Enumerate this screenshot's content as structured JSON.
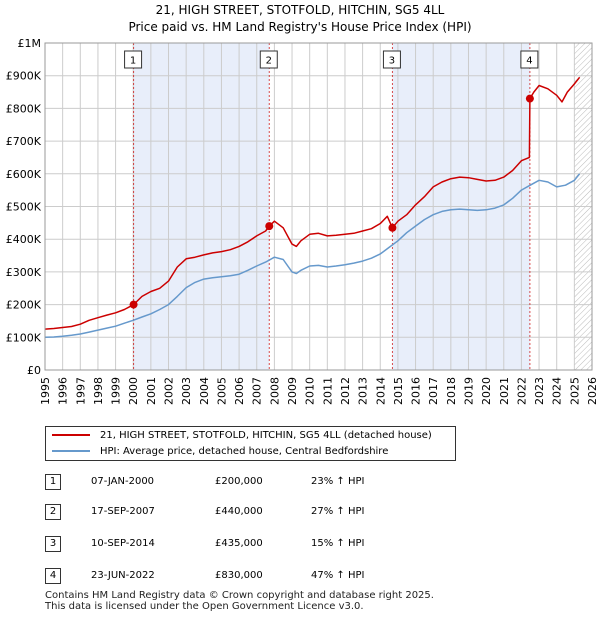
{
  "chart_data": {
    "type": "line",
    "title": "21, HIGH STREET, STOTFOLD, HITCHIN, SG5 4LL",
    "subtitle": "Price paid vs. HM Land Registry's House Price Index (HPI)",
    "xlabel": "",
    "ylabel": "",
    "xlim": [
      1995,
      2026
    ],
    "ylim": [
      0,
      1000000
    ],
    "y_ticks": [
      0,
      100000,
      200000,
      300000,
      400000,
      500000,
      600000,
      700000,
      800000,
      900000,
      1000000
    ],
    "y_tick_labels": [
      "£0",
      "£100K",
      "£200K",
      "£300K",
      "£400K",
      "£500K",
      "£600K",
      "£700K",
      "£800K",
      "£900K",
      "£1M"
    ],
    "x_ticks": [
      1995,
      1996,
      1997,
      1998,
      1999,
      2000,
      2001,
      2002,
      2003,
      2004,
      2005,
      2006,
      2007,
      2008,
      2009,
      2010,
      2011,
      2012,
      2013,
      2014,
      2015,
      2016,
      2017,
      2018,
      2019,
      2020,
      2021,
      2022,
      2023,
      2024,
      2025,
      2026
    ],
    "x_tick_labels": [
      "1995",
      "1996",
      "1997",
      "1998",
      "1999",
      "2000",
      "2001",
      "2002",
      "2003",
      "2004",
      "2005",
      "2006",
      "2007",
      "2008",
      "2009",
      "2010",
      "2011",
      "2012",
      "2013",
      "2014",
      "2015",
      "2016",
      "2017",
      "2018",
      "2019",
      "2020",
      "2021",
      "2022",
      "2023",
      "2024",
      "2025",
      "2026"
    ],
    "grid": true,
    "shaded_spans": [
      [
        2000.02,
        2007.71
      ],
      [
        2014.69,
        2022.48
      ]
    ],
    "future_hatch_start": 2025.0,
    "series": [
      {
        "name": "21, HIGH STREET, STOTFOLD, HITCHIN, SG5 4LL (detached house)",
        "color": "#cc0000",
        "x": [
          1995.0,
          1995.5,
          1996.0,
          1996.5,
          1997.0,
          1997.5,
          1998.0,
          1998.5,
          1999.0,
          1999.5,
          2000.02,
          2000.5,
          2001.0,
          2001.5,
          2002.0,
          2002.5,
          2003.0,
          2003.5,
          2004.0,
          2004.5,
          2005.0,
          2005.5,
          2006.0,
          2006.5,
          2007.0,
          2007.5,
          2007.71,
          2008.0,
          2008.5,
          2009.0,
          2009.25,
          2009.5,
          2010.0,
          2010.5,
          2011.0,
          2011.5,
          2012.0,
          2012.5,
          2013.0,
          2013.5,
          2014.0,
          2014.4,
          2014.69,
          2015.0,
          2015.5,
          2016.0,
          2016.5,
          2017.0,
          2017.5,
          2018.0,
          2018.5,
          2019.0,
          2019.5,
          2020.0,
          2020.5,
          2021.0,
          2021.5,
          2022.0,
          2022.45,
          2022.48,
          2022.7,
          2023.0,
          2023.5,
          2024.0,
          2024.3,
          2024.6,
          2025.0,
          2025.3
        ],
        "values": [
          125000,
          127000,
          130000,
          133000,
          140000,
          152000,
          160000,
          168000,
          175000,
          185000,
          200000,
          225000,
          240000,
          250000,
          272000,
          315000,
          340000,
          345000,
          352000,
          358000,
          362000,
          368000,
          378000,
          392000,
          410000,
          425000,
          440000,
          455000,
          435000,
          385000,
          378000,
          395000,
          415000,
          418000,
          410000,
          412000,
          415000,
          418000,
          425000,
          432000,
          448000,
          470000,
          435000,
          455000,
          475000,
          505000,
          530000,
          560000,
          575000,
          585000,
          590000,
          588000,
          583000,
          578000,
          580000,
          590000,
          610000,
          640000,
          650000,
          830000,
          850000,
          870000,
          860000,
          840000,
          820000,
          850000,
          875000,
          895000
        ]
      },
      {
        "name": "HPI: Average price, detached house, Central Bedfordshire",
        "color": "#6699cc",
        "x": [
          1995.0,
          1995.5,
          1996.0,
          1996.5,
          1997.0,
          1997.5,
          1998.0,
          1998.5,
          1999.0,
          1999.5,
          2000.0,
          2000.5,
          2001.0,
          2001.5,
          2002.0,
          2002.5,
          2003.0,
          2003.5,
          2004.0,
          2004.5,
          2005.0,
          2005.5,
          2006.0,
          2006.5,
          2007.0,
          2007.5,
          2008.0,
          2008.5,
          2009.0,
          2009.25,
          2009.5,
          2010.0,
          2010.5,
          2011.0,
          2011.5,
          2012.0,
          2012.5,
          2013.0,
          2013.5,
          2014.0,
          2014.5,
          2015.0,
          2015.5,
          2016.0,
          2016.5,
          2017.0,
          2017.5,
          2018.0,
          2018.5,
          2019.0,
          2019.5,
          2020.0,
          2020.5,
          2021.0,
          2021.5,
          2022.0,
          2022.5,
          2023.0,
          2023.5,
          2024.0,
          2024.5,
          2025.0,
          2025.3
        ],
        "values": [
          100000,
          101000,
          103000,
          106000,
          110000,
          116000,
          122000,
          128000,
          134000,
          143000,
          152000,
          162000,
          172000,
          185000,
          200000,
          225000,
          252000,
          268000,
          278000,
          282000,
          285000,
          288000,
          293000,
          305000,
          318000,
          330000,
          345000,
          338000,
          300000,
          295000,
          305000,
          318000,
          320000,
          315000,
          318000,
          322000,
          327000,
          333000,
          342000,
          355000,
          375000,
          395000,
          420000,
          440000,
          460000,
          475000,
          485000,
          490000,
          492000,
          490000,
          488000,
          490000,
          495000,
          505000,
          525000,
          550000,
          565000,
          580000,
          575000,
          560000,
          565000,
          580000,
          600000
        ]
      }
    ],
    "sales_markers": [
      {
        "num": "1",
        "x": 2000.02,
        "y": 200000
      },
      {
        "num": "2",
        "x": 2007.71,
        "y": 440000
      },
      {
        "num": "3",
        "x": 2014.69,
        "y": 435000
      },
      {
        "num": "4",
        "x": 2022.48,
        "y": 830000
      }
    ]
  },
  "legend": {
    "items": [
      {
        "label": "21, HIGH STREET, STOTFOLD, HITCHIN, SG5 4LL (detached house)",
        "color": "#cc0000"
      },
      {
        "label": "HPI: Average price, detached house, Central Bedfordshire",
        "color": "#6699cc"
      }
    ]
  },
  "sales": [
    {
      "num": "1",
      "date": "07-JAN-2000",
      "price": "£200,000",
      "hpi": "23% ↑ HPI"
    },
    {
      "num": "2",
      "date": "17-SEP-2007",
      "price": "£440,000",
      "hpi": "27% ↑ HPI"
    },
    {
      "num": "3",
      "date": "10-SEP-2014",
      "price": "£435,000",
      "hpi": "15% ↑ HPI"
    },
    {
      "num": "4",
      "date": "23-JUN-2022",
      "price": "£830,000",
      "hpi": "47% ↑ HPI"
    }
  ],
  "footer": {
    "line1": "Contains HM Land Registry data © Crown copyright and database right 2025.",
    "line2": "This data is licensed under the Open Government Licence v3.0."
  }
}
